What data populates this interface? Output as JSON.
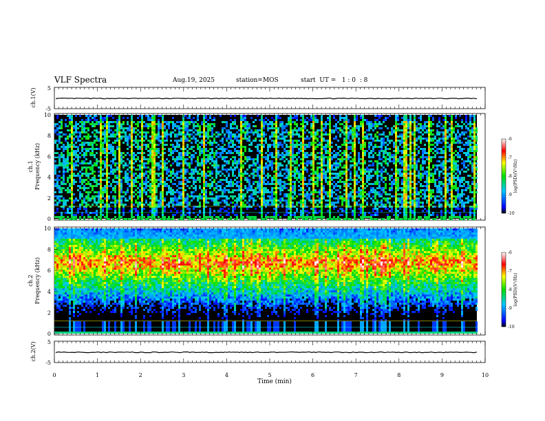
{
  "header": {
    "title": "VLF Spectra",
    "date": "Aug.19, 2025",
    "station": "station=MOS",
    "start_ut": "start  UT =   1 : 0  : 8"
  },
  "chart_data": [
    {
      "type": "line",
      "panel": "ch1-voltage",
      "ylabel": "ch.1(V)",
      "ylim": [
        -5,
        5
      ],
      "yticks": [
        "5",
        "-5"
      ],
      "series": [
        {
          "values_note": "flat trace",
          "level": -0.2
        }
      ]
    },
    {
      "type": "heatmap",
      "panel": "ch1-spectrogram",
      "ylabel": "ch.1\nFrequency (kHz)",
      "ylim": [
        0,
        10
      ],
      "yticks": [
        "0",
        "2",
        "4",
        "6",
        "8",
        "10"
      ],
      "xlim": [
        0,
        10
      ],
      "colorbar": {
        "label": "log(PSD)(V²/Hz)",
        "range": [
          -10,
          -6
        ],
        "ticks": [
          "-6",
          "-7",
          "-8",
          "-9",
          "-10"
        ]
      }
    },
    {
      "type": "heatmap",
      "panel": "ch2-spectrogram",
      "ylabel": "ch.2\nFrequency (kHz)",
      "ylim": [
        0,
        10
      ],
      "yticks": [
        "0",
        "2",
        "4",
        "6",
        "8",
        "10"
      ],
      "xlim": [
        0,
        10
      ],
      "colorbar": {
        "label": "log(PSD)(V²/Hz)",
        "range": [
          -10,
          -6
        ],
        "ticks": [
          "-6",
          "-7",
          "-8",
          "-9",
          "-10"
        ]
      }
    },
    {
      "type": "line",
      "panel": "ch2-voltage",
      "ylabel": "ch.2(V)",
      "ylim": [
        -5,
        5
      ],
      "yticks": [
        "5",
        "-5"
      ],
      "series": [
        {
          "values_note": "flat trace",
          "level": -0.2
        }
      ]
    }
  ],
  "xaxis": {
    "label": "Time  (min)",
    "range": [
      0,
      10
    ],
    "ticks": [
      "0",
      "1",
      "2",
      "3",
      "4",
      "5",
      "6",
      "7",
      "8",
      "9",
      "10"
    ]
  },
  "data_end_min": 9.82
}
